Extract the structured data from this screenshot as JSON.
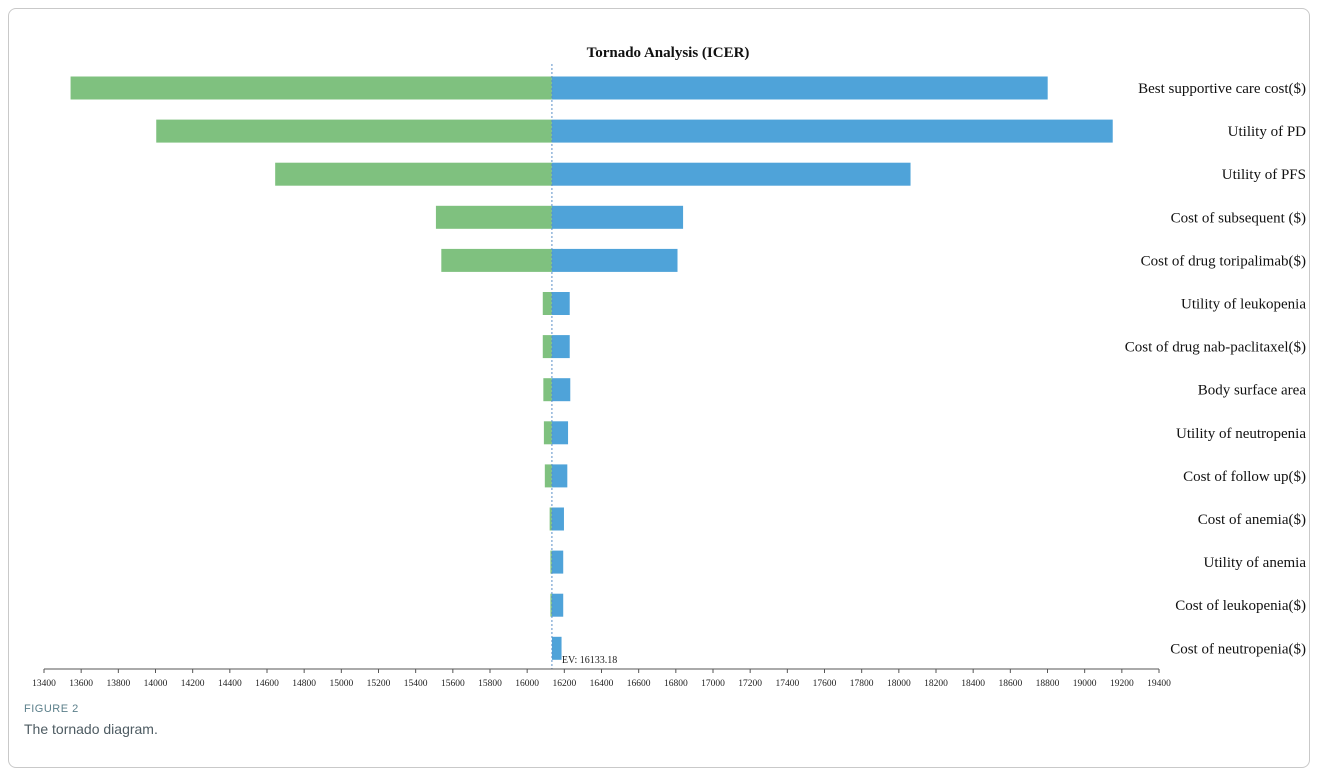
{
  "figure": {
    "label": "FIGURE 2",
    "caption": "The tornado diagram."
  },
  "colors": {
    "low_bar": "#7fc17f",
    "high_bar": "#4fa3d9",
    "axis": "#555555",
    "ev_line": "#5a8fc8"
  },
  "chart_data": {
    "type": "bar",
    "orientation": "horizontal-tornado",
    "title": "Tornado Analysis (ICER)",
    "xlim": [
      13400,
      19400
    ],
    "x_ticks": [
      13400,
      13600,
      13800,
      14000,
      14200,
      14400,
      14600,
      14800,
      15000,
      15200,
      15400,
      15600,
      15800,
      16000,
      16200,
      16400,
      16600,
      16800,
      17000,
      17200,
      17400,
      17600,
      17800,
      18000,
      18200,
      18400,
      18600,
      18800,
      19000,
      19200,
      19400
    ],
    "ev_value": 16133.18,
    "ev_label": "EV: 16133.18",
    "grid": false,
    "parameters": [
      {
        "name": "Best supportive care cost($)",
        "low": 13543,
        "high": 18801
      },
      {
        "name": "Utility of PD",
        "low": 14004,
        "high": 19151
      },
      {
        "name": "Utility of PFS",
        "low": 14644,
        "high": 18063
      },
      {
        "name": "Cost of subsequent ($)",
        "low": 15509,
        "high": 16839
      },
      {
        "name": "Cost of drug toripalimab($)",
        "low": 15538,
        "high": 16809
      },
      {
        "name": "Utility of leukopenia",
        "low": 16084,
        "high": 16229
      },
      {
        "name": "Cost of drug nab-paclitaxel($)",
        "low": 16084,
        "high": 16229
      },
      {
        "name": "Body surface area",
        "low": 16087,
        "high": 16232
      },
      {
        "name": "Utility of neutropenia",
        "low": 16090,
        "high": 16220
      },
      {
        "name": "Cost of follow up($)",
        "low": 16095,
        "high": 16216
      },
      {
        "name": "Cost of anemia($)",
        "low": 16121,
        "high": 16198
      },
      {
        "name": "Utility of anemia",
        "low": 16125,
        "high": 16194
      },
      {
        "name": "Cost of leukopenia($)",
        "low": 16125,
        "high": 16194
      },
      {
        "name": "Cost of neutropenia($)",
        "low": 16179,
        "high": 16185
      }
    ]
  }
}
